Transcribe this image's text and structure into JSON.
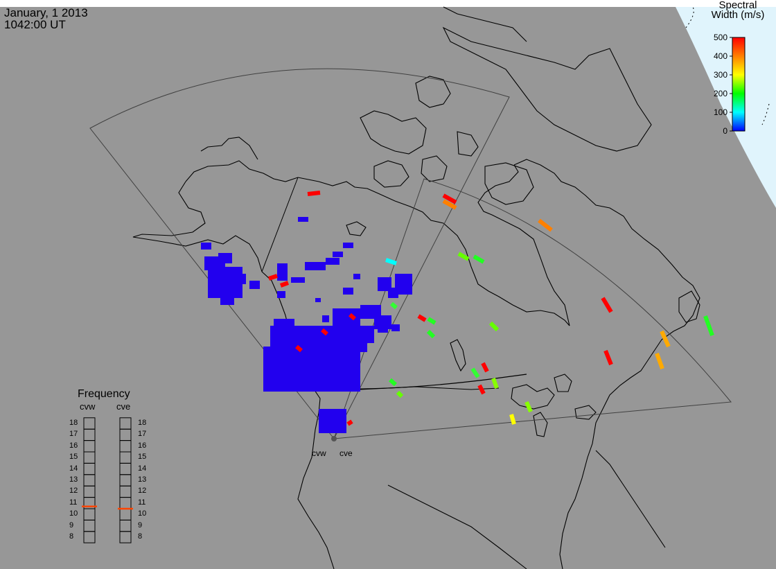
{
  "header": {
    "date": "January, 1 2013",
    "time": "1042:00 UT"
  },
  "colorbar": {
    "title_line1": "Spectral",
    "title_line2": "Width (m/s)",
    "ticks": [
      "500",
      "400",
      "300",
      "200",
      "100",
      "0"
    ],
    "min": 0,
    "max": 500
  },
  "frequency_panel": {
    "title": "Frequency",
    "radars": [
      {
        "name": "cvw",
        "frequency_mhz": 10.7
      },
      {
        "name": "cve",
        "frequency_mhz": 10.5
      }
    ],
    "ticks": [
      "18",
      "17",
      "16",
      "15",
      "14",
      "13",
      "12",
      "11",
      "10",
      "9",
      "8"
    ],
    "min": 8,
    "max": 18
  },
  "radar_labels": [
    "cvw",
    "cve"
  ],
  "colors": {
    "ocean": "#979797",
    "land_outline": "#000000",
    "fov_outline": "#404040",
    "frequency_marker": "#ff4500",
    "sunlit_region": "#e0f4fc"
  }
}
